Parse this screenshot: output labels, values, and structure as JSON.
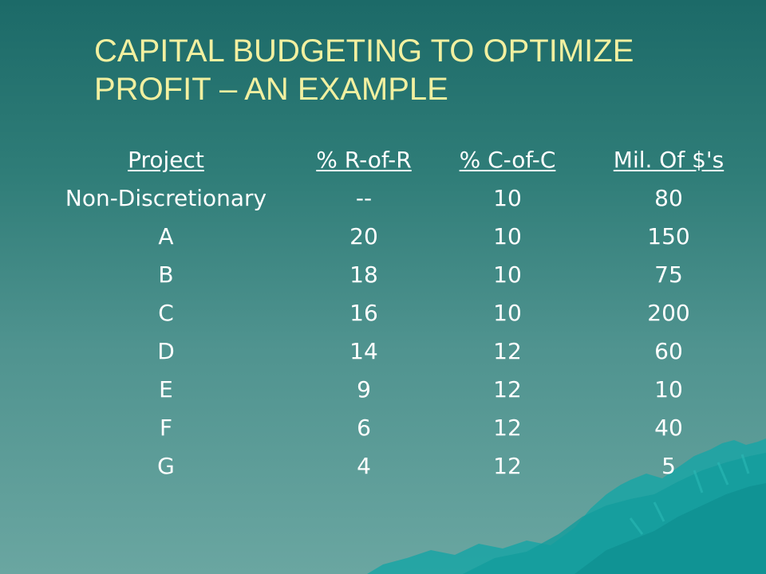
{
  "slide": {
    "title_line1": "CAPITAL BUDGETING TO OPTIMIZE",
    "title_line2": "PROFIT – AN EXAMPLE"
  },
  "table": {
    "headers": [
      "Project",
      "% R-of-R",
      "% C-of-C",
      "Mil. Of $'s"
    ],
    "rows": [
      [
        "Non-Discretionary",
        "--",
        "10",
        "80"
      ],
      [
        "A",
        "20",
        "10",
        "150"
      ],
      [
        "B",
        "18",
        "10",
        "75"
      ],
      [
        "C",
        "16",
        "10",
        "200"
      ],
      [
        "D",
        "14",
        "12",
        "60"
      ],
      [
        "E",
        "9",
        "12",
        "10"
      ],
      [
        "F",
        "6",
        "12",
        "40"
      ],
      [
        "G",
        "4",
        "12",
        "5"
      ]
    ]
  },
  "colors": {
    "title": "#f2f0a0",
    "text": "#ffffff",
    "background_top": "#1c6a68",
    "background_bottom": "#6aa6a1",
    "mountain": "#1aa4a4"
  }
}
